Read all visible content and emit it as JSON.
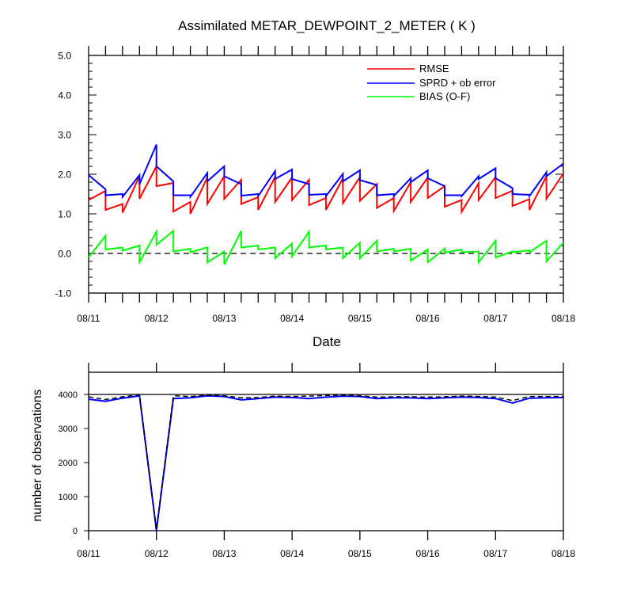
{
  "chart_data": [
    {
      "type": "line",
      "title": "Assimilated METAR_DEWPOINT_2_METER ( K )",
      "xlabel": "Date",
      "ylabel": "",
      "ylim": [
        -1.0,
        5.0
      ],
      "xlim": [
        0,
        7
      ],
      "yticks": [
        "-1.0",
        "0.0",
        "1.0",
        "2.0",
        "3.0",
        "4.0",
        "5.0"
      ],
      "xtick_labels": [
        "08/11",
        "08/12",
        "08/13",
        "08/14",
        "08/15",
        "08/16",
        "08/17",
        "08/18"
      ],
      "legend_position": "top-right",
      "zero_line": "dashed",
      "series": [
        {
          "name": "RMSE",
          "color": "#ff0000",
          "points": [
            [
              0,
              1.35
            ],
            [
              0.25,
              1.58
            ],
            [
              0.25,
              1.1
            ],
            [
              0.5,
              1.25
            ],
            [
              0.5,
              1.03
            ],
            [
              0.75,
              1.95
            ],
            [
              0.75,
              1.38
            ],
            [
              1.0,
              2.2
            ],
            [
              1.0,
              1.7
            ],
            [
              1.25,
              1.78
            ],
            [
              1.25,
              1.06
            ],
            [
              1.5,
              1.3
            ],
            [
              1.5,
              1.0
            ],
            [
              1.75,
              1.92
            ],
            [
              1.75,
              1.25
            ],
            [
              2.0,
              1.95
            ],
            [
              2.0,
              1.38
            ],
            [
              2.25,
              1.86
            ],
            [
              2.25,
              1.25
            ],
            [
              2.5,
              1.42
            ],
            [
              2.5,
              1.1
            ],
            [
              2.75,
              1.93
            ],
            [
              2.75,
              1.3
            ],
            [
              3.0,
              1.92
            ],
            [
              3.0,
              1.35
            ],
            [
              3.25,
              1.86
            ],
            [
              3.25,
              1.22
            ],
            [
              3.5,
              1.4
            ],
            [
              3.5,
              1.1
            ],
            [
              3.75,
              1.9
            ],
            [
              3.75,
              1.27
            ],
            [
              4.0,
              1.93
            ],
            [
              4.0,
              1.33
            ],
            [
              4.25,
              1.75
            ],
            [
              4.25,
              1.15
            ],
            [
              4.5,
              1.4
            ],
            [
              4.5,
              1.07
            ],
            [
              4.75,
              1.8
            ],
            [
              4.75,
              1.3
            ],
            [
              5.0,
              1.92
            ],
            [
              5.0,
              1.4
            ],
            [
              5.25,
              1.7
            ],
            [
              5.25,
              1.18
            ],
            [
              5.5,
              1.35
            ],
            [
              5.5,
              1.05
            ],
            [
              5.75,
              1.77
            ],
            [
              5.75,
              1.35
            ],
            [
              6.0,
              1.93
            ],
            [
              6.0,
              1.4
            ],
            [
              6.25,
              1.58
            ],
            [
              6.25,
              1.2
            ],
            [
              6.5,
              1.37
            ],
            [
              6.5,
              1.1
            ],
            [
              6.75,
              1.95
            ],
            [
              6.75,
              1.38
            ],
            [
              7.0,
              2.02
            ]
          ]
        },
        {
          "name": "SPRD + ob error",
          "color": "#0000ff",
          "points": [
            [
              0,
              1.98
            ],
            [
              0.25,
              1.62
            ],
            [
              0.25,
              1.47
            ],
            [
              0.5,
              1.5
            ],
            [
              0.5,
              1.43
            ],
            [
              0.75,
              1.98
            ],
            [
              0.75,
              1.75
            ],
            [
              1.0,
              2.75
            ],
            [
              1.0,
              2.2
            ],
            [
              1.25,
              1.82
            ],
            [
              1.25,
              1.47
            ],
            [
              1.5,
              1.47
            ],
            [
              1.5,
              1.43
            ],
            [
              1.75,
              2.03
            ],
            [
              1.75,
              1.82
            ],
            [
              2.0,
              2.2
            ],
            [
              2.0,
              1.95
            ],
            [
              2.25,
              1.75
            ],
            [
              2.25,
              1.46
            ],
            [
              2.5,
              1.5
            ],
            [
              2.5,
              1.45
            ],
            [
              2.75,
              2.08
            ],
            [
              2.75,
              1.88
            ],
            [
              3.0,
              2.12
            ],
            [
              3.0,
              1.88
            ],
            [
              3.25,
              1.75
            ],
            [
              3.25,
              1.48
            ],
            [
              3.5,
              1.5
            ],
            [
              3.5,
              1.45
            ],
            [
              3.75,
              2.01
            ],
            [
              3.75,
              1.82
            ],
            [
              4.0,
              2.1
            ],
            [
              4.0,
              1.85
            ],
            [
              4.25,
              1.73
            ],
            [
              4.25,
              1.47
            ],
            [
              4.5,
              1.5
            ],
            [
              4.5,
              1.45
            ],
            [
              4.75,
              1.9
            ],
            [
              4.75,
              1.8
            ],
            [
              5.0,
              2.1
            ],
            [
              5.0,
              1.9
            ],
            [
              5.25,
              1.7
            ],
            [
              5.25,
              1.47
            ],
            [
              5.5,
              1.47
            ],
            [
              5.5,
              1.45
            ],
            [
              5.75,
              1.95
            ],
            [
              5.75,
              1.88
            ],
            [
              6.0,
              2.15
            ],
            [
              6.0,
              1.9
            ],
            [
              6.25,
              1.65
            ],
            [
              6.25,
              1.5
            ],
            [
              6.5,
              1.48
            ],
            [
              6.5,
              1.45
            ],
            [
              6.75,
              2.05
            ],
            [
              6.75,
              1.95
            ],
            [
              7.0,
              2.27
            ]
          ]
        },
        {
          "name": "BIAS (O-F)",
          "color": "#00ff00",
          "points": [
            [
              0,
              -0.1
            ],
            [
              0.25,
              0.45
            ],
            [
              0.25,
              0.1
            ],
            [
              0.5,
              0.15
            ],
            [
              0.5,
              0.07
            ],
            [
              0.75,
              0.2
            ],
            [
              0.75,
              -0.22
            ],
            [
              1.0,
              0.55
            ],
            [
              1.0,
              0.22
            ],
            [
              1.25,
              0.57
            ],
            [
              1.25,
              0.05
            ],
            [
              1.5,
              0.12
            ],
            [
              1.5,
              0.03
            ],
            [
              1.75,
              0.15
            ],
            [
              1.75,
              -0.23
            ],
            [
              2.0,
              0.05
            ],
            [
              2.0,
              -0.28
            ],
            [
              2.25,
              0.57
            ],
            [
              2.25,
              0.15
            ],
            [
              2.5,
              0.2
            ],
            [
              2.5,
              0.1
            ],
            [
              2.75,
              0.15
            ],
            [
              2.75,
              -0.12
            ],
            [
              3.0,
              0.25
            ],
            [
              3.0,
              -0.07
            ],
            [
              3.25,
              0.55
            ],
            [
              3.25,
              0.15
            ],
            [
              3.5,
              0.2
            ],
            [
              3.5,
              0.1
            ],
            [
              3.75,
              0.15
            ],
            [
              3.75,
              -0.12
            ],
            [
              4.0,
              0.27
            ],
            [
              4.0,
              -0.12
            ],
            [
              4.25,
              0.32
            ],
            [
              4.25,
              0.05
            ],
            [
              4.5,
              0.12
            ],
            [
              4.5,
              0.05
            ],
            [
              4.75,
              0.12
            ],
            [
              4.75,
              -0.18
            ],
            [
              5.0,
              0.1
            ],
            [
              5.0,
              -0.22
            ],
            [
              5.25,
              0.12
            ],
            [
              5.25,
              0.02
            ],
            [
              5.5,
              0.1
            ],
            [
              5.5,
              0.03
            ],
            [
              5.75,
              0.05
            ],
            [
              5.75,
              -0.22
            ],
            [
              6.0,
              0.32
            ],
            [
              6.0,
              -0.1
            ],
            [
              6.25,
              0.05
            ],
            [
              6.25,
              0.03
            ],
            [
              6.5,
              0.08
            ],
            [
              6.5,
              0.03
            ],
            [
              6.75,
              0.32
            ],
            [
              6.75,
              -0.2
            ],
            [
              7.0,
              0.27
            ]
          ]
        }
      ]
    },
    {
      "type": "line",
      "title": "",
      "xlabel": "",
      "ylabel": "number of observations",
      "ylim": [
        0,
        4000
      ],
      "xlim": [
        0,
        7
      ],
      "yticks": [
        "0",
        "1000",
        "2000",
        "3000",
        "4000"
      ],
      "xtick_labels": [
        "08/11",
        "08/12",
        "08/13",
        "08/14",
        "08/15",
        "08/16",
        "08/17",
        "08/18"
      ],
      "series": [
        {
          "name": "",
          "color": "#0000ff",
          "style": "solid",
          "points": [
            [
              0,
              3860
            ],
            [
              0.25,
              3800
            ],
            [
              0.5,
              3890
            ],
            [
              0.75,
              3960
            ],
            [
              1.0,
              10
            ],
            [
              1.25,
              3880
            ],
            [
              1.5,
              3900
            ],
            [
              1.75,
              3960
            ],
            [
              2.0,
              3940
            ],
            [
              2.25,
              3840
            ],
            [
              2.5,
              3880
            ],
            [
              2.75,
              3920
            ],
            [
              3.0,
              3910
            ],
            [
              3.25,
              3880
            ],
            [
              3.5,
              3920
            ],
            [
              3.75,
              3950
            ],
            [
              4.0,
              3940
            ],
            [
              4.25,
              3880
            ],
            [
              4.5,
              3900
            ],
            [
              4.75,
              3900
            ],
            [
              5.0,
              3880
            ],
            [
              5.25,
              3900
            ],
            [
              5.5,
              3920
            ],
            [
              5.75,
              3910
            ],
            [
              6.0,
              3880
            ],
            [
              6.25,
              3750
            ],
            [
              6.5,
              3890
            ],
            [
              6.75,
              3900
            ],
            [
              7.0,
              3910
            ]
          ]
        },
        {
          "name": "",
          "color": "#000000",
          "style": "dashed",
          "points": [
            [
              0,
              3930
            ],
            [
              0.25,
              3850
            ],
            [
              0.5,
              3930
            ],
            [
              0.75,
              3990
            ],
            [
              1.0,
              20
            ],
            [
              1.25,
              3960
            ],
            [
              1.5,
              3940
            ],
            [
              1.75,
              3980
            ],
            [
              2.0,
              3960
            ],
            [
              2.25,
              3900
            ],
            [
              2.5,
              3910
            ],
            [
              2.75,
              3950
            ],
            [
              3.0,
              3940
            ],
            [
              3.25,
              3950
            ],
            [
              3.5,
              3970
            ],
            [
              3.75,
              3980
            ],
            [
              4.0,
              3960
            ],
            [
              4.25,
              3920
            ],
            [
              4.5,
              3930
            ],
            [
              4.75,
              3930
            ],
            [
              5.0,
              3920
            ],
            [
              5.25,
              3930
            ],
            [
              5.5,
              3950
            ],
            [
              5.75,
              3940
            ],
            [
              6.0,
              3920
            ],
            [
              6.25,
              3820
            ],
            [
              6.5,
              3940
            ],
            [
              6.75,
              3940
            ],
            [
              7.0,
              3940
            ]
          ]
        }
      ]
    }
  ]
}
